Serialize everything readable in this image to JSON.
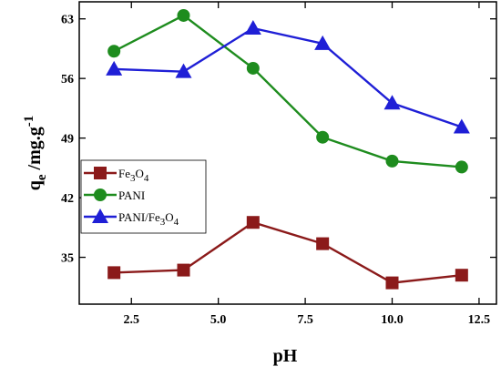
{
  "chart_data": {
    "type": "line",
    "xlabel": "pH",
    "ylabel": "q",
    "ylabel_sub": "e",
    "ylabel_rest": " /mg.g",
    "ylabel_sup": "-1",
    "xlim": [
      1.0,
      13.0
    ],
    "ylim": [
      29.5,
      65.0
    ],
    "x_ticks": [
      2.5,
      5.0,
      7.5,
      10.0,
      12.5
    ],
    "x_tick_labels": [
      "2.5",
      "5.0",
      "7.5",
      "10.0",
      "12.5"
    ],
    "y_ticks": [
      35,
      42,
      49,
      56,
      63
    ],
    "y_tick_labels": [
      "35",
      "42",
      "49",
      "56",
      "63"
    ],
    "grid": false,
    "legend_position": "center-left",
    "series": [
      {
        "name": "Fe3O4",
        "label_parts": [
          {
            "t": "Fe",
            "sub": false
          },
          {
            "t": "3",
            "sub": true
          },
          {
            "t": "O",
            "sub": false
          },
          {
            "t": "4",
            "sub": true
          }
        ],
        "color": "#8b1a1a",
        "marker": "square",
        "x": [
          2,
          4,
          6,
          8,
          10,
          12
        ],
        "y": [
          33.2,
          33.5,
          39.1,
          36.6,
          32.0,
          32.9
        ]
      },
      {
        "name": "PANI",
        "label_parts": [
          {
            "t": "PANI",
            "sub": false
          }
        ],
        "color": "#1e8c1e",
        "marker": "circle",
        "x": [
          2,
          4,
          6,
          8,
          10,
          12
        ],
        "y": [
          59.2,
          63.4,
          57.2,
          49.1,
          46.3,
          45.6
        ]
      },
      {
        "name": "PANI/Fe3O4",
        "label_parts": [
          {
            "t": "PANI/Fe",
            "sub": false
          },
          {
            "t": "3",
            "sub": true
          },
          {
            "t": "O",
            "sub": false
          },
          {
            "t": "4",
            "sub": true
          }
        ],
        "color": "#1f1fd6",
        "marker": "triangle",
        "x": [
          2,
          4,
          6,
          8,
          10,
          12
        ],
        "y": [
          57.1,
          56.8,
          61.9,
          60.1,
          53.1,
          50.3
        ]
      }
    ]
  }
}
